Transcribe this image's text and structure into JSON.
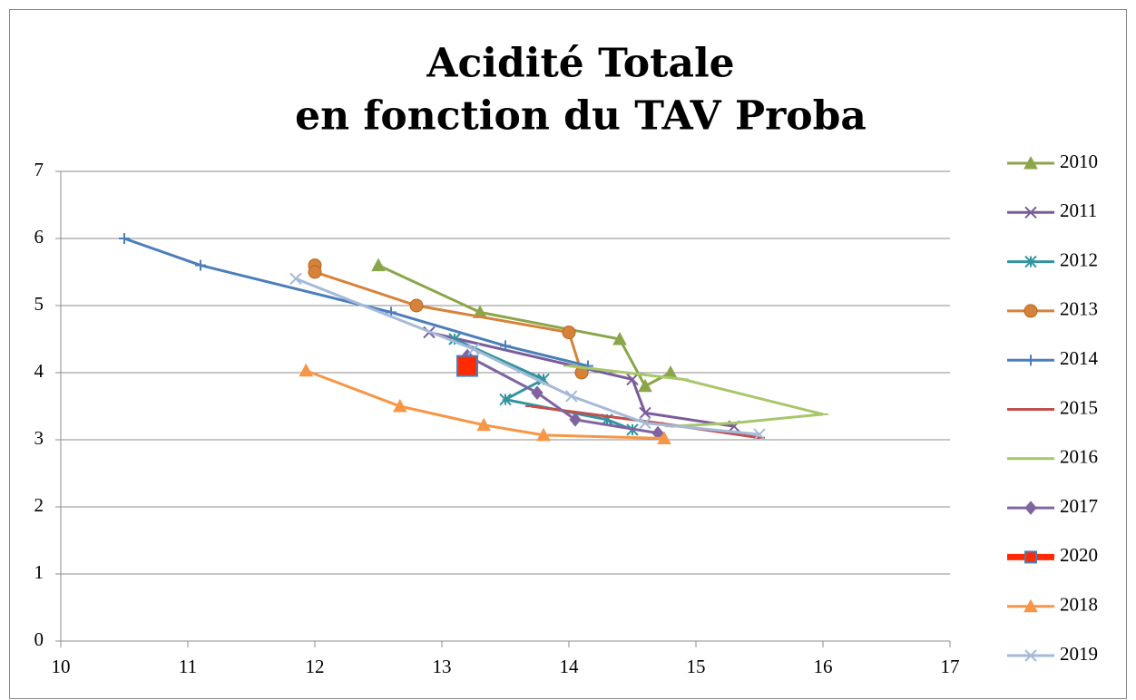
{
  "chart_data": {
    "type": "line",
    "title": [
      "Acidité Totale",
      "en fonction du TAV Proba"
    ],
    "xlim": [
      10,
      17
    ],
    "xticks": [
      10,
      11,
      12,
      13,
      14,
      15,
      16,
      17
    ],
    "ylim": [
      0,
      7
    ],
    "yticks": [
      0,
      1,
      2,
      3,
      4,
      5,
      6,
      7
    ],
    "grid": true,
    "legend": "right",
    "series": [
      {
        "name": "2010",
        "color": "#8aa64a",
        "marker": "triangle",
        "x": [
          12.5,
          13.3,
          14.4,
          14.6,
          14.8
        ],
        "values": [
          5.6,
          4.9,
          4.5,
          3.8,
          4.0
        ]
      },
      {
        "name": "2011",
        "color": "#7a5c9a",
        "marker": "x",
        "x": [
          12.9,
          14.5,
          14.6,
          15.3
        ],
        "values": [
          4.6,
          3.9,
          3.4,
          3.2
        ]
      },
      {
        "name": "2012",
        "color": "#31949e",
        "marker": "asterisk",
        "x": [
          13.1,
          13.8,
          13.5,
          14.3,
          14.5
        ],
        "values": [
          4.5,
          3.9,
          3.6,
          3.3,
          3.15
        ]
      },
      {
        "name": "2013",
        "color": "#d7823a",
        "marker": "circle",
        "x": [
          12.0,
          12.0,
          12.8,
          14.0,
          14.1
        ],
        "values": [
          5.6,
          5.5,
          5.0,
          4.6,
          4.0
        ]
      },
      {
        "name": "2014",
        "color": "#4a7ebb",
        "marker": "plus",
        "x": [
          10.5,
          11.1,
          12.6,
          13.5,
          14.15
        ],
        "values": [
          6.0,
          5.6,
          4.9,
          4.4,
          4.1
        ]
      },
      {
        "name": "2015",
        "color": "#c0504d",
        "marker": "dash",
        "x": [
          13.7,
          14.7,
          15.5
        ],
        "values": [
          3.5,
          3.25,
          3.03
        ]
      },
      {
        "name": "2016",
        "color": "#a8c66a",
        "marker": "dash",
        "x": [
          14.0,
          14.9,
          16.0,
          15.3,
          14.8
        ],
        "values": [
          4.1,
          3.9,
          3.38,
          3.25,
          3.2
        ]
      },
      {
        "name": "2017",
        "color": "#8064a2",
        "marker": "diamond",
        "x": [
          13.2,
          13.75,
          14.05,
          14.7
        ],
        "values": [
          4.25,
          3.7,
          3.3,
          3.1
        ]
      },
      {
        "name": "2020",
        "color": "#ff2a00",
        "marker": "square",
        "x": [
          13.2
        ],
        "values": [
          4.1
        ]
      },
      {
        "name": "2018",
        "color": "#f79646",
        "marker": "triangle",
        "x": [
          11.93,
          12.67,
          13.33,
          13.8,
          14.75
        ],
        "values": [
          4.03,
          3.5,
          3.22,
          3.07,
          3.02
        ]
      },
      {
        "name": "2019",
        "color": "#a5b9d8",
        "marker": "x",
        "x": [
          11.85,
          13.25,
          14.02,
          14.6,
          15.5
        ],
        "values": [
          5.4,
          4.35,
          3.65,
          3.25,
          3.08
        ]
      }
    ]
  }
}
